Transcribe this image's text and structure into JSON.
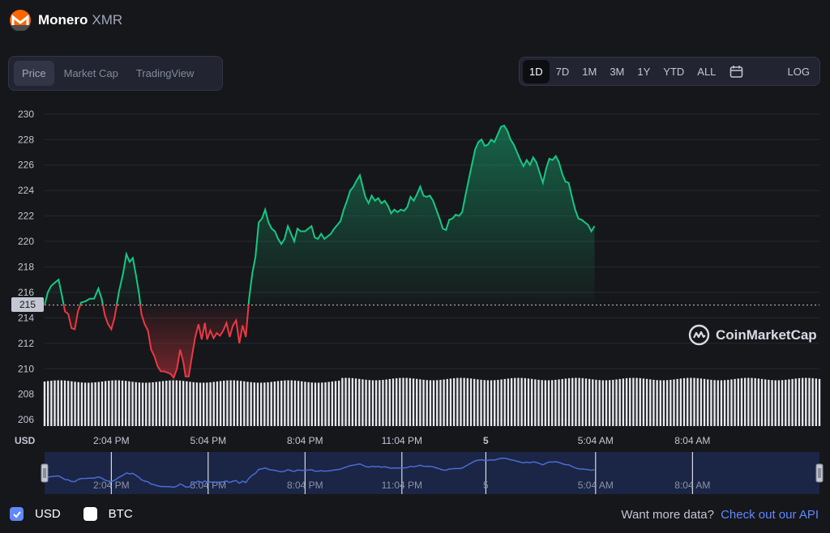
{
  "header": {
    "name": "Monero",
    "symbol": "XMR"
  },
  "view_tabs": [
    "Price",
    "Market Cap",
    "TradingView"
  ],
  "active_view_tab": "Price",
  "range_tabs": [
    "1D",
    "7D",
    "1M",
    "3M",
    "1Y",
    "YTD",
    "ALL"
  ],
  "active_range_tab": "1D",
  "scale_button": "LOG",
  "current_price_label": "215",
  "currency_axis_label": "USD",
  "watermark": "CoinMarketCap",
  "legend": {
    "usd": "USD",
    "btc": "BTC",
    "usd_checked": true,
    "btc_checked": false
  },
  "footer": {
    "text": "Want more data?",
    "link": "Check out our API"
  },
  "colors": {
    "up": "#16c784",
    "down": "#ea3943",
    "accent": "#6188ff",
    "logo": "#ff6600",
    "navigator": "#4a6cd4"
  },
  "chart_data": {
    "type": "line",
    "baseline": 215,
    "ylim": [
      205.5,
      230.5
    ],
    "yticks": [
      206,
      208,
      210,
      212,
      214,
      216,
      218,
      220,
      222,
      224,
      226,
      228,
      230
    ],
    "xlim": [
      0,
      1440
    ],
    "xticks": [
      {
        "x": 124,
        "label": "2:04 PM"
      },
      {
        "x": 304,
        "label": "5:04 PM"
      },
      {
        "x": 484,
        "label": "8:04 PM"
      },
      {
        "x": 664,
        "label": "11:04 PM"
      },
      {
        "x": 820,
        "label": "5"
      },
      {
        "x": 1024,
        "label": "5:04 AM"
      },
      {
        "x": 1204,
        "label": "8:04 AM"
      }
    ],
    "price_series": [
      [
        0,
        215
      ],
      [
        6,
        216
      ],
      [
        12,
        216.5
      ],
      [
        20,
        216.8
      ],
      [
        26,
        217
      ],
      [
        32,
        215.8
      ],
      [
        38,
        214.5
      ],
      [
        44,
        214.3
      ],
      [
        50,
        213.2
      ],
      [
        56,
        213.1
      ],
      [
        62,
        214.5
      ],
      [
        68,
        215.2
      ],
      [
        76,
        215.3
      ],
      [
        84,
        215.5
      ],
      [
        92,
        215.5
      ],
      [
        100,
        216.3
      ],
      [
        106,
        215.5
      ],
      [
        112,
        214.2
      ],
      [
        118,
        213.5
      ],
      [
        124,
        213.1
      ],
      [
        130,
        214
      ],
      [
        138,
        216
      ],
      [
        146,
        217.5
      ],
      [
        152,
        219
      ],
      [
        158,
        218.4
      ],
      [
        164,
        218.7
      ],
      [
        170,
        217.3
      ],
      [
        176,
        215.8
      ],
      [
        180,
        214.3
      ],
      [
        186,
        213.5
      ],
      [
        192,
        213
      ],
      [
        198,
        211.5
      ],
      [
        204,
        211
      ],
      [
        210,
        210.2
      ],
      [
        216,
        209.8
      ],
      [
        222,
        209.8
      ],
      [
        228,
        209.7
      ],
      [
        234,
        209.6
      ],
      [
        240,
        209.3
      ],
      [
        246,
        210
      ],
      [
        252,
        211.5
      ],
      [
        258,
        210.5
      ],
      [
        262,
        209.4
      ],
      [
        268,
        209.4
      ],
      [
        274,
        211
      ],
      [
        280,
        212.5
      ],
      [
        286,
        213.5
      ],
      [
        292,
        212.3
      ],
      [
        298,
        213.6
      ],
      [
        302,
        212.3
      ],
      [
        308,
        213
      ],
      [
        314,
        212.4
      ],
      [
        320,
        212.8
      ],
      [
        326,
        212.6
      ],
      [
        332,
        213
      ],
      [
        338,
        213.6
      ],
      [
        344,
        212.5
      ],
      [
        350,
        213.4
      ],
      [
        356,
        213.8
      ],
      [
        362,
        212
      ],
      [
        368,
        213.4
      ],
      [
        374,
        212.5
      ],
      [
        380,
        215.5
      ],
      [
        386,
        217.5
      ],
      [
        392,
        218.8
      ],
      [
        398,
        221.5
      ],
      [
        404,
        221.8
      ],
      [
        410,
        222.5
      ],
      [
        416,
        221.5
      ],
      [
        422,
        221
      ],
      [
        428,
        220.8
      ],
      [
        434,
        220.2
      ],
      [
        440,
        219.8
      ],
      [
        446,
        220.2
      ],
      [
        452,
        221.2
      ],
      [
        458,
        220.6
      ],
      [
        464,
        220
      ],
      [
        470,
        221
      ],
      [
        476,
        220.8
      ],
      [
        484,
        220.8
      ],
      [
        490,
        221
      ],
      [
        496,
        221.2
      ],
      [
        502,
        220.3
      ],
      [
        508,
        220.2
      ],
      [
        514,
        220.6
      ],
      [
        520,
        220.2
      ],
      [
        526,
        220.4
      ],
      [
        532,
        220.6
      ],
      [
        538,
        221
      ],
      [
        544,
        221.3
      ],
      [
        550,
        221.6
      ],
      [
        556,
        222.5
      ],
      [
        562,
        223.2
      ],
      [
        568,
        224
      ],
      [
        574,
        224.3
      ],
      [
        580,
        224.8
      ],
      [
        586,
        225.2
      ],
      [
        590,
        224.5
      ],
      [
        596,
        223.5
      ],
      [
        602,
        223
      ],
      [
        608,
        223.6
      ],
      [
        614,
        223.2
      ],
      [
        620,
        223.4
      ],
      [
        626,
        223
      ],
      [
        632,
        223.2
      ],
      [
        638,
        222.8
      ],
      [
        644,
        222.2
      ],
      [
        650,
        222.5
      ],
      [
        656,
        222.3
      ],
      [
        662,
        222.5
      ],
      [
        668,
        222.4
      ],
      [
        674,
        222.7
      ],
      [
        680,
        223.5
      ],
      [
        686,
        223.2
      ],
      [
        692,
        223.7
      ],
      [
        698,
        224.3
      ],
      [
        704,
        223.6
      ],
      [
        710,
        223.5
      ],
      [
        716,
        223.6
      ],
      [
        722,
        223.2
      ],
      [
        728,
        222.5
      ],
      [
        734,
        221.8
      ],
      [
        740,
        221
      ],
      [
        746,
        220.9
      ],
      [
        752,
        221.7
      ],
      [
        758,
        221.8
      ],
      [
        764,
        222.1
      ],
      [
        770,
        222
      ],
      [
        776,
        222.3
      ],
      [
        782,
        223.6
      ],
      [
        788,
        224.8
      ],
      [
        794,
        226
      ],
      [
        800,
        227.2
      ],
      [
        806,
        227.8
      ],
      [
        812,
        228
      ],
      [
        818,
        227.5
      ],
      [
        824,
        227.6
      ],
      [
        830,
        228
      ],
      [
        836,
        227.8
      ],
      [
        842,
        228.4
      ],
      [
        848,
        229
      ],
      [
        854,
        229.1
      ],
      [
        860,
        228.7
      ],
      [
        866,
        228
      ],
      [
        872,
        227.6
      ],
      [
        878,
        227
      ],
      [
        884,
        226.4
      ],
      [
        890,
        225.9
      ],
      [
        896,
        226.4
      ],
      [
        902,
        226
      ],
      [
        908,
        226.6
      ],
      [
        914,
        226.2
      ],
      [
        920,
        225.4
      ],
      [
        926,
        224.6
      ],
      [
        932,
        225.7
      ],
      [
        938,
        226.5
      ],
      [
        944,
        226.4
      ],
      [
        950,
        226.7
      ],
      [
        956,
        226.2
      ],
      [
        962,
        225.3
      ],
      [
        968,
        224.7
      ],
      [
        974,
        224.6
      ],
      [
        980,
        223.5
      ],
      [
        986,
        222.5
      ],
      [
        992,
        221.8
      ],
      [
        998,
        221.7
      ],
      [
        1004,
        221.5
      ],
      [
        1010,
        221.3
      ],
      [
        1016,
        220.8
      ],
      [
        1022,
        221.2
      ]
    ],
    "volume_bars": {
      "count": 230,
      "ylim": [
        205.5,
        230.5
      ]
    },
    "navigator": {
      "xticks": [
        {
          "x": 124,
          "label": "2:04 PM"
        },
        {
          "x": 304,
          "label": "5:04 PM"
        },
        {
          "x": 484,
          "label": "8:04 PM"
        },
        {
          "x": 664,
          "label": "11:04 PM"
        },
        {
          "x": 820,
          "label": "5"
        },
        {
          "x": 1024,
          "label": "5:04 AM"
        },
        {
          "x": 1204,
          "label": "8:04 AM"
        }
      ]
    }
  }
}
